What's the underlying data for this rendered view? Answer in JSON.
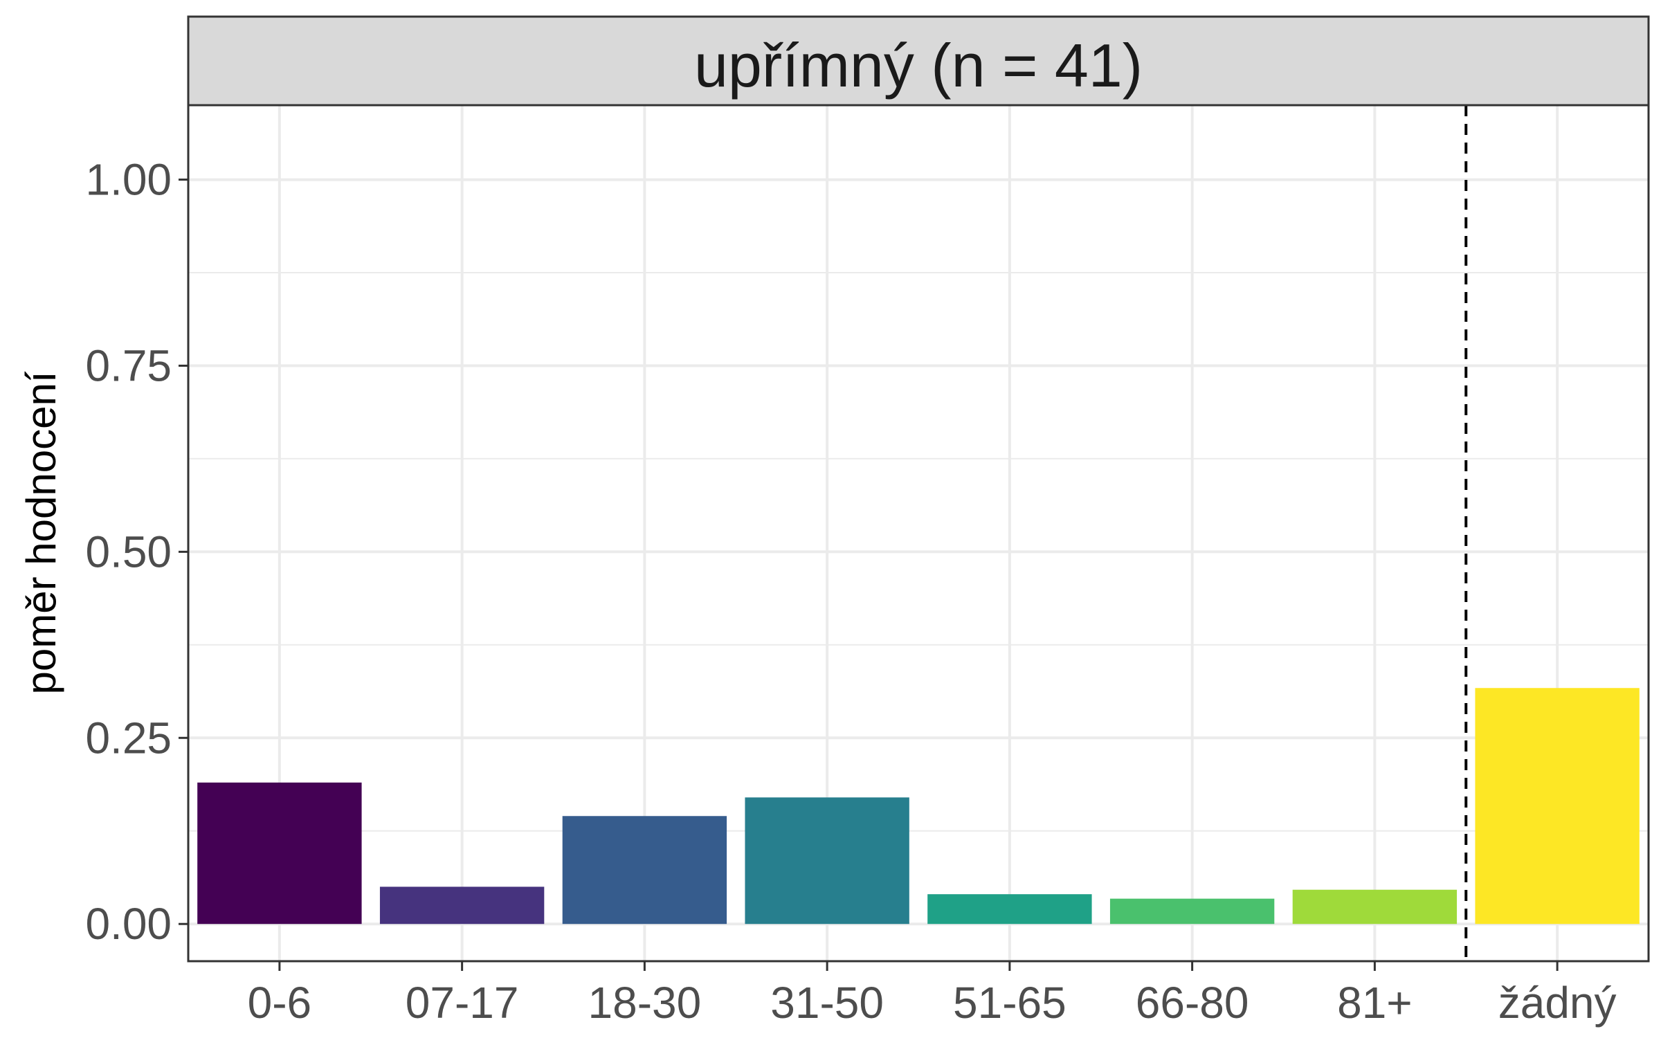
{
  "chart_data": {
    "type": "bar",
    "facet_title": "upřímný (n = 41)",
    "xlabel": "",
    "ylabel": "poměr hodnocení",
    "categories": [
      "0-6",
      "07-17",
      "18-30",
      "31-50",
      "51-65",
      "66-80",
      "81+",
      "žádný"
    ],
    "values": [
      0.19,
      0.05,
      0.145,
      0.17,
      0.04,
      0.034,
      0.046,
      0.317
    ],
    "colors": [
      "#440154",
      "#46337E",
      "#365C8D",
      "#277F8E",
      "#1FA187",
      "#4AC16D",
      "#9FDA3A",
      "#FDE725"
    ],
    "ylim": [
      -0.05,
      1.1
    ],
    "yticks": [
      0,
      0.25,
      0.5,
      0.75,
      1.0
    ],
    "ytick_labels": [
      "0.00",
      "0.25",
      "0.50",
      "0.75",
      "1.00"
    ],
    "separator": {
      "style": "dashed",
      "between": [
        "81+",
        "žádný"
      ]
    },
    "grid": true,
    "legend": "none"
  }
}
